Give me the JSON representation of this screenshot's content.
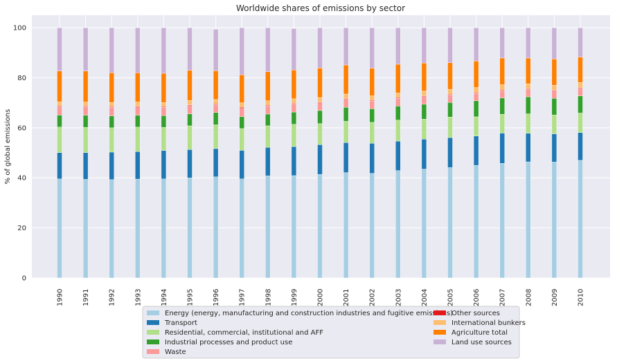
{
  "chart_data": {
    "type": "bar",
    "stacked": true,
    "title": "Worldwide shares of emissions by sector",
    "xlabel": "",
    "ylabel": "% of global emissions",
    "ylim": [
      0,
      105
    ],
    "yticks": [
      0,
      20,
      40,
      60,
      80,
      100
    ],
    "grid": true,
    "legend_position": "bottom-center",
    "background_color": "#eaeaf2",
    "categories": [
      "1990",
      "1991",
      "1992",
      "1993",
      "1994",
      "1995",
      "1996",
      "1997",
      "1998",
      "1999",
      "2000",
      "2001",
      "2002",
      "2003",
      "2004",
      "2005",
      "2006",
      "2007",
      "2008",
      "2009",
      "2010"
    ],
    "series": [
      {
        "name": "Energy (energy, manufacturing and construction industries and fugitive emissions)",
        "color": "#a6cee3",
        "values": [
          39.6,
          39.4,
          39.3,
          39.5,
          39.6,
          40.0,
          40.4,
          39.6,
          40.8,
          40.9,
          41.4,
          42.1,
          41.8,
          42.9,
          43.5,
          44.1,
          45.0,
          45.8,
          46.4,
          46.3,
          47.0
        ]
      },
      {
        "name": "Transport",
        "color": "#1f78b4",
        "values": [
          10.5,
          10.7,
          11.0,
          11.0,
          11.3,
          11.3,
          11.3,
          11.4,
          11.4,
          11.6,
          11.9,
          12.0,
          12.0,
          11.8,
          12.0,
          12.0,
          11.7,
          12.1,
          11.4,
          11.3,
          11.1
        ]
      },
      {
        "name": "Residential, commercial, institutional and AFF",
        "color": "#b2df8a",
        "values": [
          10.2,
          10.1,
          9.7,
          9.8,
          9.3,
          9.5,
          9.5,
          8.7,
          8.6,
          8.9,
          8.4,
          8.5,
          8.4,
          8.4,
          8.0,
          8.2,
          7.7,
          7.5,
          7.8,
          7.5,
          7.8
        ]
      },
      {
        "name": "Industrial processes and product use",
        "color": "#33a02c",
        "values": [
          4.8,
          4.8,
          4.8,
          4.7,
          4.7,
          4.8,
          4.9,
          4.8,
          4.7,
          4.9,
          5.2,
          5.6,
          5.4,
          5.6,
          5.9,
          5.8,
          6.4,
          6.5,
          6.8,
          6.7,
          6.9
        ]
      },
      {
        "name": "Waste",
        "color": "#fb9a99",
        "values": [
          3.4,
          3.4,
          3.4,
          3.3,
          3.3,
          3.3,
          3.2,
          3.3,
          3.2,
          3.2,
          3.1,
          3.2,
          3.1,
          3.1,
          3.1,
          3.0,
          2.9,
          2.9,
          2.9,
          2.9,
          2.9
        ]
      },
      {
        "name": "Other sources",
        "color": "#e31a1c",
        "values": [
          0.3,
          0.3,
          0.3,
          0.3,
          0.3,
          0.3,
          0.3,
          0.4,
          0.3,
          0.3,
          0.3,
          0.3,
          0.3,
          0.3,
          0.3,
          0.3,
          0.3,
          0.3,
          0.3,
          0.3,
          0.3
        ]
      },
      {
        "name": "International bunkers",
        "color": "#fdbf6f",
        "values": [
          1.6,
          1.6,
          1.6,
          1.7,
          1.6,
          1.7,
          1.7,
          1.8,
          1.8,
          1.8,
          1.8,
          1.8,
          1.8,
          1.8,
          1.9,
          2.0,
          2.1,
          2.1,
          2.0,
          2.0,
          2.1
        ]
      },
      {
        "name": "Agriculture total",
        "color": "#ff7f00",
        "values": [
          12.3,
          12.4,
          11.9,
          11.7,
          11.7,
          12.1,
          11.5,
          11.2,
          11.6,
          11.5,
          11.8,
          11.6,
          11.0,
          11.5,
          11.2,
          10.6,
          10.6,
          10.7,
          10.3,
          10.5,
          10.2
        ]
      },
      {
        "name": "Land use sources",
        "color": "#cab2d6",
        "values": [
          17.3,
          17.3,
          18.0,
          18.0,
          18.2,
          17.0,
          16.6,
          18.8,
          17.6,
          16.6,
          16.1,
          14.9,
          16.2,
          14.6,
          14.1,
          14.0,
          13.3,
          12.1,
          12.1,
          12.5,
          11.7
        ]
      }
    ]
  }
}
